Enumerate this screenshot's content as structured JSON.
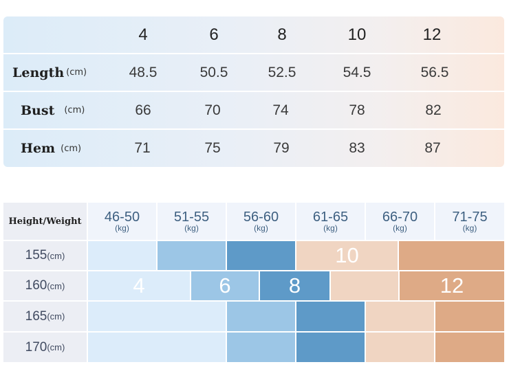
{
  "measurements": {
    "sizes": [
      "4",
      "6",
      "8",
      "10",
      "12"
    ],
    "rows": [
      {
        "label": "Length",
        "unit": "(cm)",
        "values": [
          "48.5",
          "50.5",
          "52.5",
          "54.5",
          "56.5"
        ]
      },
      {
        "label": "Bust",
        "unit": "(cm)",
        "values": [
          "66",
          "70",
          "74",
          "78",
          "82"
        ]
      },
      {
        "label": "Hem",
        "unit": "(cm)",
        "values": [
          "71",
          "75",
          "79",
          "83",
          "87"
        ]
      }
    ]
  },
  "size_guide": {
    "corner_label": "Height/Weight",
    "weight_columns": [
      {
        "range": "46-50",
        "unit": "(kg)"
      },
      {
        "range": "51-55",
        "unit": "(kg)"
      },
      {
        "range": "56-60",
        "unit": "(kg)"
      },
      {
        "range": "61-65",
        "unit": "(kg)"
      },
      {
        "range": "66-70",
        "unit": "(kg)"
      },
      {
        "range": "71-75",
        "unit": "(kg)"
      }
    ],
    "height_rows": [
      {
        "height": "155",
        "unit": "(cm)"
      },
      {
        "height": "160",
        "unit": "(cm)"
      },
      {
        "height": "165",
        "unit": "(cm)"
      },
      {
        "height": "170",
        "unit": "(cm)"
      }
    ],
    "size_labels": [
      "4",
      "6",
      "8",
      "10",
      "12"
    ],
    "colors": {
      "size_4": "#dcecfa",
      "size_6": "#9cc6e6",
      "size_8": "#5e9ac8",
      "size_10": "#f0d5c2",
      "size_12": "#deaa86"
    }
  }
}
